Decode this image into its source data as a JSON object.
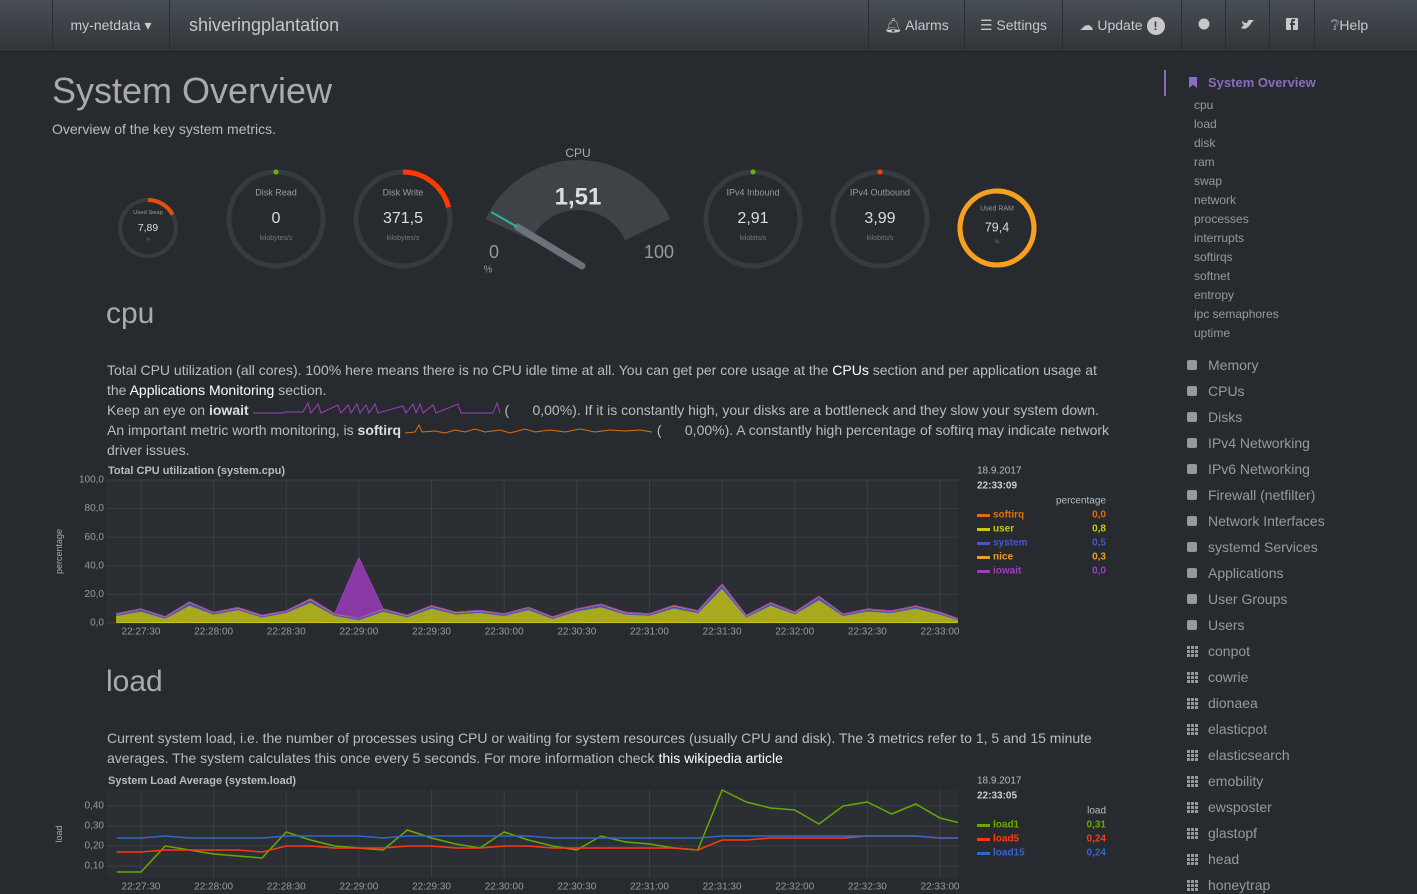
{
  "navbar": {
    "brand": "my-netdata",
    "host": "shiveringplantation",
    "buttons": [
      "Alarms",
      "Settings",
      "Update",
      "Help"
    ],
    "update_badge": "!"
  },
  "header": {
    "title": "System Overview",
    "subtitle": "Overview of the key system metrics."
  },
  "gauges": [
    {
      "title": "Used Swap",
      "value": "7,89",
      "unit": "%"
    },
    {
      "title": "Disk Read",
      "value": "0",
      "unit": "kilobytes/s"
    },
    {
      "title": "Disk Write",
      "value": "371,5",
      "unit": "kilobytes/s"
    },
    {
      "title": "IPv4 Inbound",
      "value": "2,91",
      "unit": "kilobits/s"
    },
    {
      "title": "IPv4 Outbound",
      "value": "3,99",
      "unit": "kilobits/s"
    },
    {
      "title": "Used RAM",
      "value": "79,4",
      "unit": "%"
    }
  ],
  "cpu_gauge": {
    "title": "CPU",
    "value": "1,51",
    "min": "0",
    "max": "100",
    "unit": "%"
  },
  "sections": [
    {
      "title": "cpu",
      "paragraphs": [
        [
          "Total CPU utilization (all cores). 100% here means there is no CPU idle time at all. You can get per core usage at the ",
          "CPUs",
          " section and per application usage at the ",
          "Applications Monitoring",
          " section."
        ],
        [
          "Keep an eye on ",
          "iowait",
          "(",
          "0,00%",
          "). If it is constantly high, your disks are a bottleneck and they slow your system down."
        ],
        [
          "An important metric worth monitoring, is ",
          "softirq",
          "(",
          "0,00%",
          "). A constantly high percentage of softirq may indicate network driver issues."
        ]
      ],
      "chart": {
        "type": "area",
        "stacked": true,
        "title": "Total CPU utilization (system.cpu)",
        "ylabel": "percentage",
        "ylim": [
          0,
          100
        ],
        "yticks": [
          {
            "value": 0,
            "label": "0,0"
          },
          {
            "value": 20,
            "label": "20,0"
          },
          {
            "value": 40,
            "label": "40,0"
          },
          {
            "value": 60,
            "label": "60,0"
          },
          {
            "value": 80,
            "label": "80,0"
          },
          {
            "value": 100,
            "label": "100,0"
          }
        ],
        "categories": [
          null,
          "22:27:30",
          null,
          null,
          "22:28:00",
          null,
          null,
          "22:28:30",
          null,
          null,
          "22:29:00",
          null,
          null,
          "22:29:30",
          null,
          null,
          "22:30:00",
          null,
          null,
          "22:30:30",
          null,
          null,
          "22:31:00",
          null,
          null,
          "22:31:30",
          null,
          null,
          "22:32:00",
          null,
          null,
          "22:32:30",
          null,
          null,
          "22:33:00",
          null
        ],
        "date": "18.9.2017",
        "time": "22:33:09",
        "legend_title": "percentage",
        "series": [
          {
            "name": "softirq",
            "color": "#de6e0e",
            "current": "0,0",
            "values": [
              0.3,
              0.2,
              0.3,
              0.4,
              0.2,
              0.3,
              0.2,
              0.3,
              0.5,
              0.2,
              0.3,
              0.2,
              0.3,
              0.4,
              0.2,
              0.3,
              0.2,
              0.3,
              0.2,
              0.4,
              0.3,
              0.2,
              0.3,
              0.5,
              0.2,
              0.3,
              0.2,
              0.4,
              0.3,
              0.3,
              0.2,
              0.3,
              0.2,
              0.4,
              0.2,
              0
            ]
          },
          {
            "name": "user",
            "color": "#c8c81a",
            "current": "0,8",
            "values": [
              5,
              8,
              3,
              12,
              6,
              9,
              4,
              7,
              14,
              5,
              2,
              8,
              4,
              10,
              6,
              7,
              5,
              9,
              3,
              8,
              11,
              6,
              5,
              10,
              7,
              24,
              4,
              12,
              6,
              16,
              5,
              8,
              7,
              10,
              6,
              0.8
            ]
          },
          {
            "name": "system",
            "color": "#4a57c3",
            "current": "0,5",
            "values": [
              1,
              1.5,
              0.8,
              2,
              1,
              1.2,
              0.9,
              1,
              2,
              1,
              1.1,
              1.3,
              0.9,
              1.5,
              1,
              1.2,
              1,
              1.4,
              0.8,
              1.2,
              1.6,
              1,
              0.9,
              1.5,
              1.1,
              2.5,
              0.8,
              1.6,
              1,
              2,
              0.9,
              1.2,
              1,
              1.4,
              1,
              0.5
            ]
          },
          {
            "name": "nice",
            "color": "#e9a026",
            "current": "0,3",
            "values": [
              0.3,
              0.2,
              0.3,
              0.3,
              0.2,
              0.3,
              0.3,
              0.2,
              0.4,
              0.3,
              0.2,
              0.3,
              0.3,
              0.2,
              0.3,
              0.3,
              0.2,
              0.3,
              0.3,
              0.2,
              0.3,
              0.3,
              0.2,
              0.3,
              0.3,
              0.4,
              0.3,
              0.2,
              0.3,
              0.3,
              0.2,
              0.3,
              0.3,
              0.2,
              0.3,
              0.3
            ]
          },
          {
            "name": "iowait",
            "color": "#a13cc0",
            "current": "0,0",
            "values": [
              0,
              0,
              0,
              0,
              0,
              0,
              0,
              0,
              0,
              0,
              42,
              0,
              0,
              0,
              0,
              0,
              0,
              0,
              0,
              0,
              0,
              0,
              0,
              0,
              0,
              0,
              0,
              0,
              0,
              0,
              0,
              0,
              0,
              0,
              0,
              0
            ]
          }
        ]
      }
    },
    {
      "title": "load",
      "paragraphs": [
        [
          "Current system load, i.e. the number of processes using CPU or waiting for system resources (usually CPU and disk). The 3 metrics refer to 1, 5 and 15 minute averages. The system calculates this once every 5 seconds. For more information check ",
          "this wikipedia article"
        ]
      ],
      "chart": {
        "type": "line",
        "title": "System Load Average (system.load)",
        "ylabel": "load",
        "ylim": [
          0.04,
          0.48
        ],
        "yticks": [
          {
            "value": 0.1,
            "label": "0,10"
          },
          {
            "value": 0.2,
            "label": "0,20"
          },
          {
            "value": 0.3,
            "label": "0,30"
          },
          {
            "value": 0.4,
            "label": "0,40"
          }
        ],
        "categories": [
          null,
          "22:27:30",
          null,
          null,
          "22:28:00",
          null,
          null,
          "22:28:30",
          null,
          null,
          "22:29:00",
          null,
          null,
          "22:29:30",
          null,
          null,
          "22:30:00",
          null,
          null,
          "22:30:30",
          null,
          null,
          "22:31:00",
          null,
          null,
          "22:31:30",
          null,
          null,
          "22:32:00",
          null,
          null,
          "22:32:30",
          null,
          null,
          "22:33:00",
          null
        ],
        "date": "18.9.2017",
        "time": "22:33:05",
        "legend_title": "load",
        "series": [
          {
            "name": "load1",
            "color": "#66aa00",
            "current": "0,31",
            "values": [
              0.07,
              0.07,
              0.2,
              0.18,
              0.16,
              0.15,
              0.14,
              0.27,
              0.23,
              0.2,
              0.19,
              0.18,
              0.28,
              0.24,
              0.21,
              0.19,
              0.27,
              0.23,
              0.2,
              0.18,
              0.25,
              0.22,
              0.21,
              0.19,
              0.18,
              0.48,
              0.42,
              0.39,
              0.38,
              0.31,
              0.4,
              0.42,
              0.36,
              0.41,
              0.34,
              0.31
            ]
          },
          {
            "name": "load5",
            "color": "#fe3912",
            "current": "0,24",
            "values": [
              0.17,
              0.17,
              0.18,
              0.18,
              0.18,
              0.18,
              0.17,
              0.2,
              0.2,
              0.19,
              0.19,
              0.19,
              0.2,
              0.2,
              0.19,
              0.19,
              0.2,
              0.2,
              0.19,
              0.19,
              0.19,
              0.19,
              0.19,
              0.19,
              0.18,
              0.23,
              0.23,
              0.24,
              0.24,
              0.24,
              0.24,
              0.25,
              0.25,
              0.25,
              0.24,
              0.24
            ]
          },
          {
            "name": "load15",
            "color": "#3366cc",
            "current": "0,24",
            "values": [
              0.24,
              0.24,
              0.25,
              0.24,
              0.24,
              0.24,
              0.24,
              0.25,
              0.25,
              0.25,
              0.25,
              0.24,
              0.25,
              0.25,
              0.25,
              0.25,
              0.25,
              0.25,
              0.24,
              0.24,
              0.24,
              0.24,
              0.24,
              0.24,
              0.24,
              0.25,
              0.25,
              0.25,
              0.25,
              0.25,
              0.25,
              0.25,
              0.25,
              0.25,
              0.24,
              0.24
            ]
          }
        ]
      }
    }
  ],
  "sidebar": {
    "active": "System Overview",
    "subitems": [
      "cpu",
      "load",
      "disk",
      "ram",
      "swap",
      "network",
      "processes",
      "interrupts",
      "softirqs",
      "softnet",
      "entropy",
      "ipc semaphores",
      "uptime"
    ],
    "sections": [
      "Memory",
      "CPUs",
      "Disks",
      "IPv4 Networking",
      "IPv6 Networking",
      "Firewall (netfilter)",
      "Network Interfaces",
      "systemd Services",
      "Applications",
      "User Groups",
      "Users",
      "conpot",
      "cowrie",
      "dionaea",
      "elasticpot",
      "elasticsearch",
      "emobility",
      "ewsposter",
      "glastopf",
      "head",
      "honeytrap"
    ]
  }
}
